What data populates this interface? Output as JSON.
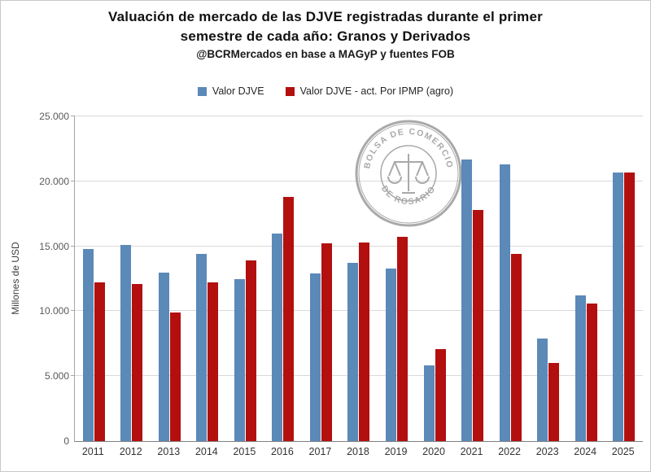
{
  "title": {
    "line1": "Valuación de mercado de las DJVE registradas durante el primer",
    "line2": "semestre de cada año: Granos y Derivados",
    "line3": "@BCRMercados en base a MAGyP y fuentes FOB"
  },
  "watermark": {
    "top": "BOLSA DE COMERCIO",
    "bottom": "DE ROSARIO"
  },
  "colors": {
    "series_blue": "#5b89b8",
    "series_red": "#b30f0f",
    "gridline": "#d9d9d9",
    "axis": "#808080",
    "watermark_gray": "#9b9b9b"
  },
  "chart_data": {
    "type": "bar",
    "title": "Valuación de mercado de las DJVE registradas durante el primer semestre de cada año: Granos y Derivados",
    "subtitle": "@BCRMercados en base a MAGyP y fuentes FOB",
    "xlabel": "",
    "ylabel": "Millones de USD",
    "ylim": [
      0,
      25000
    ],
    "ytick_step": 5000,
    "ytick_labels": [
      "0",
      "5.000",
      "10.000",
      "15.000",
      "20.000",
      "25.000"
    ],
    "grid": "horizontal",
    "legend_position": "top",
    "categories": [
      "2011",
      "2012",
      "2013",
      "2014",
      "2015",
      "2016",
      "2017",
      "2018",
      "2019",
      "2020",
      "2021",
      "2022",
      "2023",
      "2024",
      "2025"
    ],
    "series": [
      {
        "name": "Valor DJVE",
        "color": "#5b89b8",
        "values": [
          14800,
          15100,
          13000,
          14400,
          12500,
          16000,
          12900,
          13700,
          13300,
          5800,
          21700,
          21300,
          7900,
          11200,
          20700
        ]
      },
      {
        "name": "Valor DJVE - act. Por IPMP (agro)",
        "color": "#b30f0f",
        "values": [
          12200,
          12100,
          9900,
          12200,
          13900,
          18800,
          15200,
          15300,
          15700,
          7100,
          17800,
          14400,
          6000,
          10600,
          20700
        ]
      }
    ]
  }
}
